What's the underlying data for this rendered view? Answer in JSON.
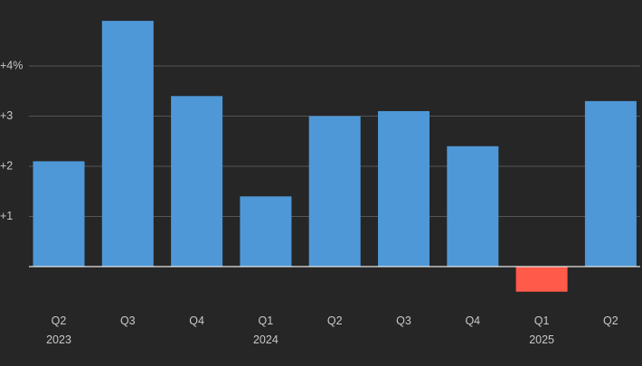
{
  "chart_data": {
    "type": "bar",
    "title": "",
    "xlabel": "",
    "ylabel": "",
    "categories": [
      {
        "quarter": "Q2",
        "year": "2023"
      },
      {
        "quarter": "Q3",
        "year": ""
      },
      {
        "quarter": "Q4",
        "year": ""
      },
      {
        "quarter": "Q1",
        "year": "2024"
      },
      {
        "quarter": "Q2",
        "year": ""
      },
      {
        "quarter": "Q3",
        "year": ""
      },
      {
        "quarter": "Q4",
        "year": ""
      },
      {
        "quarter": "Q1",
        "year": "2025"
      },
      {
        "quarter": "Q2",
        "year": ""
      }
    ],
    "values": [
      2.1,
      4.9,
      3.4,
      1.4,
      3.0,
      3.1,
      2.4,
      -0.5,
      3.3
    ],
    "ylim": [
      -1.0,
      5.0
    ],
    "yticks": [
      {
        "value": 4,
        "label": "+4%"
      },
      {
        "value": 3,
        "label": "+3"
      },
      {
        "value": 2,
        "label": "+2"
      },
      {
        "value": 1,
        "label": "+1"
      }
    ],
    "grid": true,
    "colors": {
      "positive": "#4e98d8",
      "negative": "#ff5a4a",
      "background": "#262626"
    }
  }
}
